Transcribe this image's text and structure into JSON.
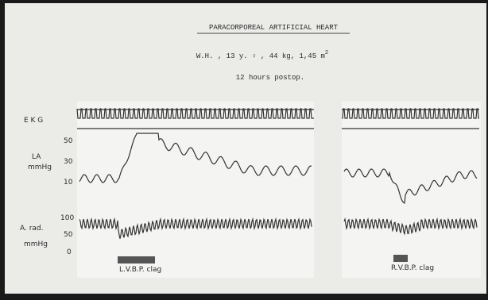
{
  "header": {
    "title": "PARACORPOREAL ARTIFICIAL HEART",
    "patient": "W.H. ,  13 y. ♀ ,  44 kg,  1,45 m",
    "patient_sup": "2",
    "time": "12 hours postop."
  },
  "labels": {
    "ekg": "E K G",
    "la": "LA",
    "la_unit": "mmHg",
    "arad": "A. rad.",
    "arad_unit": "mmHg"
  },
  "la_ticks": [
    "50",
    "30",
    "10"
  ],
  "arad_ticks": [
    "100",
    "50",
    "0"
  ],
  "markers": [
    "L.V.B.P. clag",
    "R.V.B.P. clag"
  ]
}
